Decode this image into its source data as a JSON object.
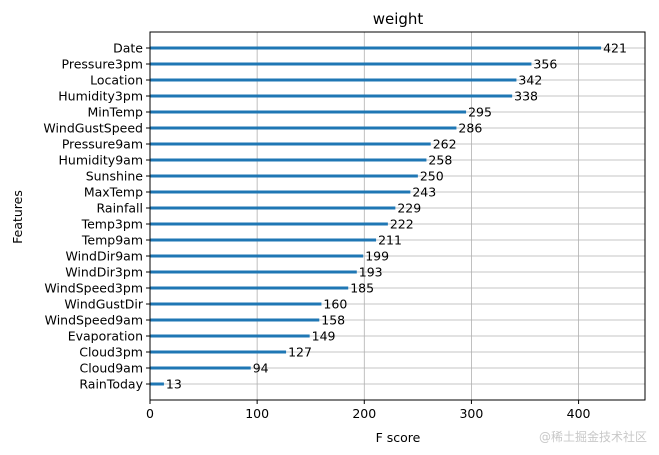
{
  "chart_data": {
    "type": "bar",
    "orientation": "horizontal",
    "title": "weight",
    "xlabel": "F score",
    "ylabel": "Features",
    "xlim": [
      0,
      462
    ],
    "xticks": [
      0,
      100,
      200,
      300,
      400
    ],
    "grid": true,
    "bar_color": "#1f77b4",
    "categories": [
      "Date",
      "Pressure3pm",
      "Location",
      "Humidity3pm",
      "MinTemp",
      "WindGustSpeed",
      "Pressure9am",
      "Humidity9am",
      "Sunshine",
      "MaxTemp",
      "Rainfall",
      "Temp3pm",
      "Temp9am",
      "WindDir9am",
      "WindDir3pm",
      "WindSpeed3pm",
      "WindGustDir",
      "WindSpeed9am",
      "Evaporation",
      "Cloud3pm",
      "Cloud9am",
      "RainToday"
    ],
    "values": [
      421,
      356,
      342,
      338,
      295,
      286,
      262,
      258,
      250,
      243,
      229,
      222,
      211,
      199,
      193,
      185,
      160,
      158,
      149,
      127,
      94,
      13
    ]
  },
  "watermark": "@稀土掘金技术社区"
}
